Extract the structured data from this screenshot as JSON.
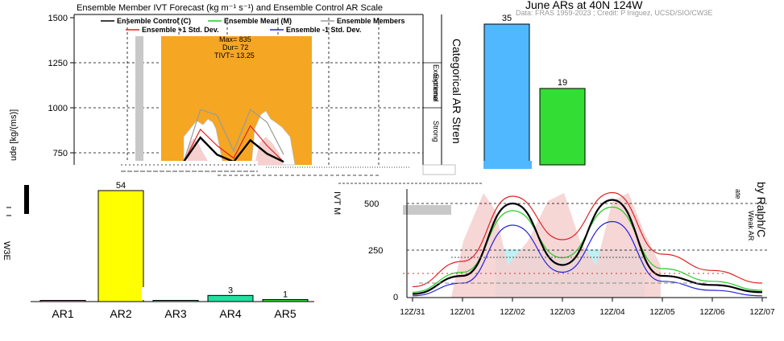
{
  "colors": {
    "control": "#000000",
    "mean": "#22cc22",
    "plus_std": "#dd2222",
    "minus_std": "#2222dd",
    "members": "#9a9a9a",
    "exceptional_box": "#f5a623",
    "grey_bar": "#c8c8c8",
    "pink_fill": "#f6cfcf",
    "cyan_fill": "#bff0f4"
  },
  "chart_data": [
    {
      "type": "line",
      "title": "Ensemble Member IVT Forecast (kg m⁻¹ s⁻¹) and Ensemble Control AR Scale",
      "ylabel": "ude [kg/(ms)]",
      "ylim": [
        700,
        1500
      ],
      "yticks": [
        "1500",
        "1250",
        "1000",
        "750"
      ],
      "ytick_values": [
        1500,
        1250,
        1000,
        750
      ],
      "legend": {
        "placement": "top",
        "entries": [
          "Ensemble Control (C)",
          "Ensemble Mean (M)",
          "Ensemble Members",
          "Ensemble +1 Std. Dev.",
          "Ensemble -1 Std. Dev."
        ]
      },
      "scale_labels": [
        "Exceptional",
        "Extreme",
        "Strong"
      ],
      "annotation": {
        "max": "Max= 835",
        "dur": "Dur= 72",
        "tivt": "TIVT= 13.25"
      },
      "series": [
        {
          "name": "Ensemble Control (C)",
          "values": [
            700,
            835,
            740,
            700,
            820,
            745,
            700
          ]
        },
        {
          "name": "Ensemble +1 Std. Dev.",
          "values": [
            700,
            880,
            790,
            720,
            900,
            790,
            700
          ]
        },
        {
          "name": "Ensemble Members",
          "values": [
            700,
            990,
            960,
            760,
            990,
            920,
            740
          ]
        }
      ]
    },
    {
      "type": "bar",
      "title": "June ARs at 40N 124W",
      "subtitle": "Data: FRAS 1959-2023 ; Credit: P Iniguez, UCSD/SIO/CW3E",
      "ylabel_fragment": "Categorical AR Stren",
      "categories": [
        "AR1",
        "AR2",
        "AR3",
        "AR4",
        "AR5"
      ],
      "values": [
        0,
        54,
        0,
        3,
        1
      ],
      "value_labels": [
        "",
        "54",
        "",
        "3",
        "1"
      ],
      "colors": [
        "#f2a0c8",
        "#ffff00",
        "#7fe0c8",
        "#22e0a0",
        "#33dd33"
      ],
      "upper_fragment_bars": [
        {
          "label": "35",
          "value": 35,
          "color": "#4fb8ff"
        },
        {
          "label": "19",
          "value": 19,
          "color": "#33dd33"
        }
      ],
      "left_fragment": "W3E"
    },
    {
      "type": "line",
      "ylabel_fragment": "IVT M",
      "yticks": [
        "500",
        "250",
        "0"
      ],
      "ytick_values": [
        500,
        250,
        0
      ],
      "ylim": [
        0,
        600
      ],
      "x": [
        "12Z/31",
        "12Z/01",
        "12Z/02",
        "12Z/03",
        "12Z/04",
        "12Z/05",
        "12Z/06",
        "12Z/07"
      ],
      "right_fragments": [
        "ate",
        "Weak AR",
        "by Ralph/C"
      ],
      "series": [
        {
          "name": "Ensemble Control (C)",
          "values": [
            20,
            120,
            520,
            180,
            540,
            120,
            70,
            30
          ]
        },
        {
          "name": "Ensemble Mean (M)",
          "values": [
            30,
            140,
            480,
            220,
            500,
            160,
            90,
            40
          ]
        },
        {
          "name": "Ensemble +1 Std. Dev.",
          "values": [
            60,
            200,
            560,
            320,
            580,
            240,
            150,
            80
          ]
        },
        {
          "name": "Ensemble -1 Std. Dev.",
          "values": [
            10,
            80,
            400,
            140,
            420,
            90,
            40,
            10
          ]
        }
      ]
    }
  ]
}
